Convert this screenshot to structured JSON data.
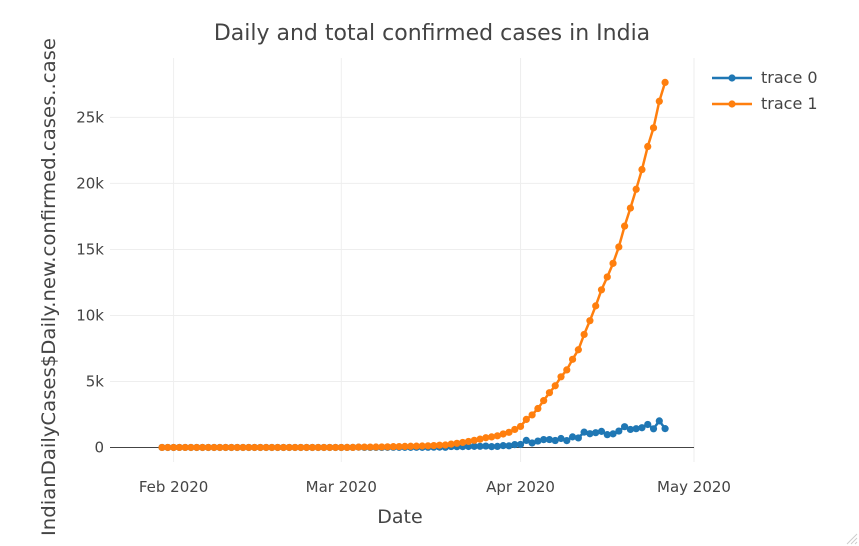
{
  "chart_data": {
    "type": "line",
    "title": "Daily and total confirmed cases in India",
    "xlabel": "Date",
    "ylabel": "IndianDailyCases$Daily.new.confirmed.cases..case",
    "x_start": "2020-01-30",
    "x_end": "2020-04-24",
    "xlim": [
      "2020-01-21",
      "2020-05-01"
    ],
    "ylim": [
      -1100,
      29500
    ],
    "x_ticks": [
      {
        "date": "2020-02-01",
        "label": "Feb 2020"
      },
      {
        "date": "2020-03-01",
        "label": "Mar 2020"
      },
      {
        "date": "2020-04-01",
        "label": "Apr 2020"
      },
      {
        "date": "2020-05-01",
        "label": "May 2020"
      }
    ],
    "y_ticks": [
      {
        "value": 0,
        "label": "0"
      },
      {
        "value": 5000,
        "label": "5k"
      },
      {
        "value": 10000,
        "label": "10k"
      },
      {
        "value": 15000,
        "label": "15k"
      },
      {
        "value": 20000,
        "label": "20k"
      },
      {
        "value": 25000,
        "label": "25k"
      }
    ],
    "grid": true,
    "legend_position": "top-right",
    "series": [
      {
        "name": "trace 0",
        "color": "#1f77b4",
        "values": [
          1,
          0,
          0,
          1,
          1,
          0,
          0,
          0,
          0,
          0,
          0,
          0,
          0,
          0,
          0,
          0,
          0,
          0,
          0,
          0,
          0,
          0,
          0,
          0,
          0,
          0,
          0,
          0,
          0,
          0,
          0,
          0,
          2,
          1,
          22,
          2,
          1,
          3,
          5,
          9,
          15,
          8,
          10,
          10,
          11,
          10,
          14,
          21,
          26,
          14,
          69,
          60,
          65,
          75,
          86,
          88,
          106,
          65,
          81,
          140,
          125,
          218,
          227,
          535,
          339,
          485,
          597,
          601,
          526,
          679,
          521,
          802,
          724,
          1162,
          1042,
          1119,
          1220,
          971,
          1031,
          1245,
          1575,
          1367,
          1424,
          1496,
          1742,
          1415,
          2012,
          1429
        ]
      },
      {
        "name": "trace 1",
        "color": "#ff7f0e",
        "values": [
          1,
          1,
          1,
          2,
          3,
          3,
          3,
          3,
          3,
          3,
          3,
          3,
          3,
          3,
          3,
          3,
          3,
          3,
          3,
          3,
          3,
          3,
          3,
          3,
          3,
          3,
          3,
          3,
          3,
          3,
          3,
          3,
          5,
          6,
          28,
          30,
          31,
          34,
          39,
          48,
          63,
          71,
          81,
          91,
          102,
          112,
          126,
          147,
          173,
          187,
          256,
          316,
          381,
          456,
          542,
          630,
          736,
          801,
          882,
          1022,
          1147,
          1365,
          1592,
          2127,
          2466,
          2951,
          3548,
          4149,
          4675,
          5354,
          5875,
          6677,
          7401,
          8563,
          9605,
          10724,
          11944,
          12915,
          13946,
          15191,
          16766,
          18133,
          19557,
          21053,
          22795,
          24210,
          26222,
          27651
        ]
      }
    ]
  },
  "modebar": {
    "resize_icon": "resize-handle-icon"
  }
}
